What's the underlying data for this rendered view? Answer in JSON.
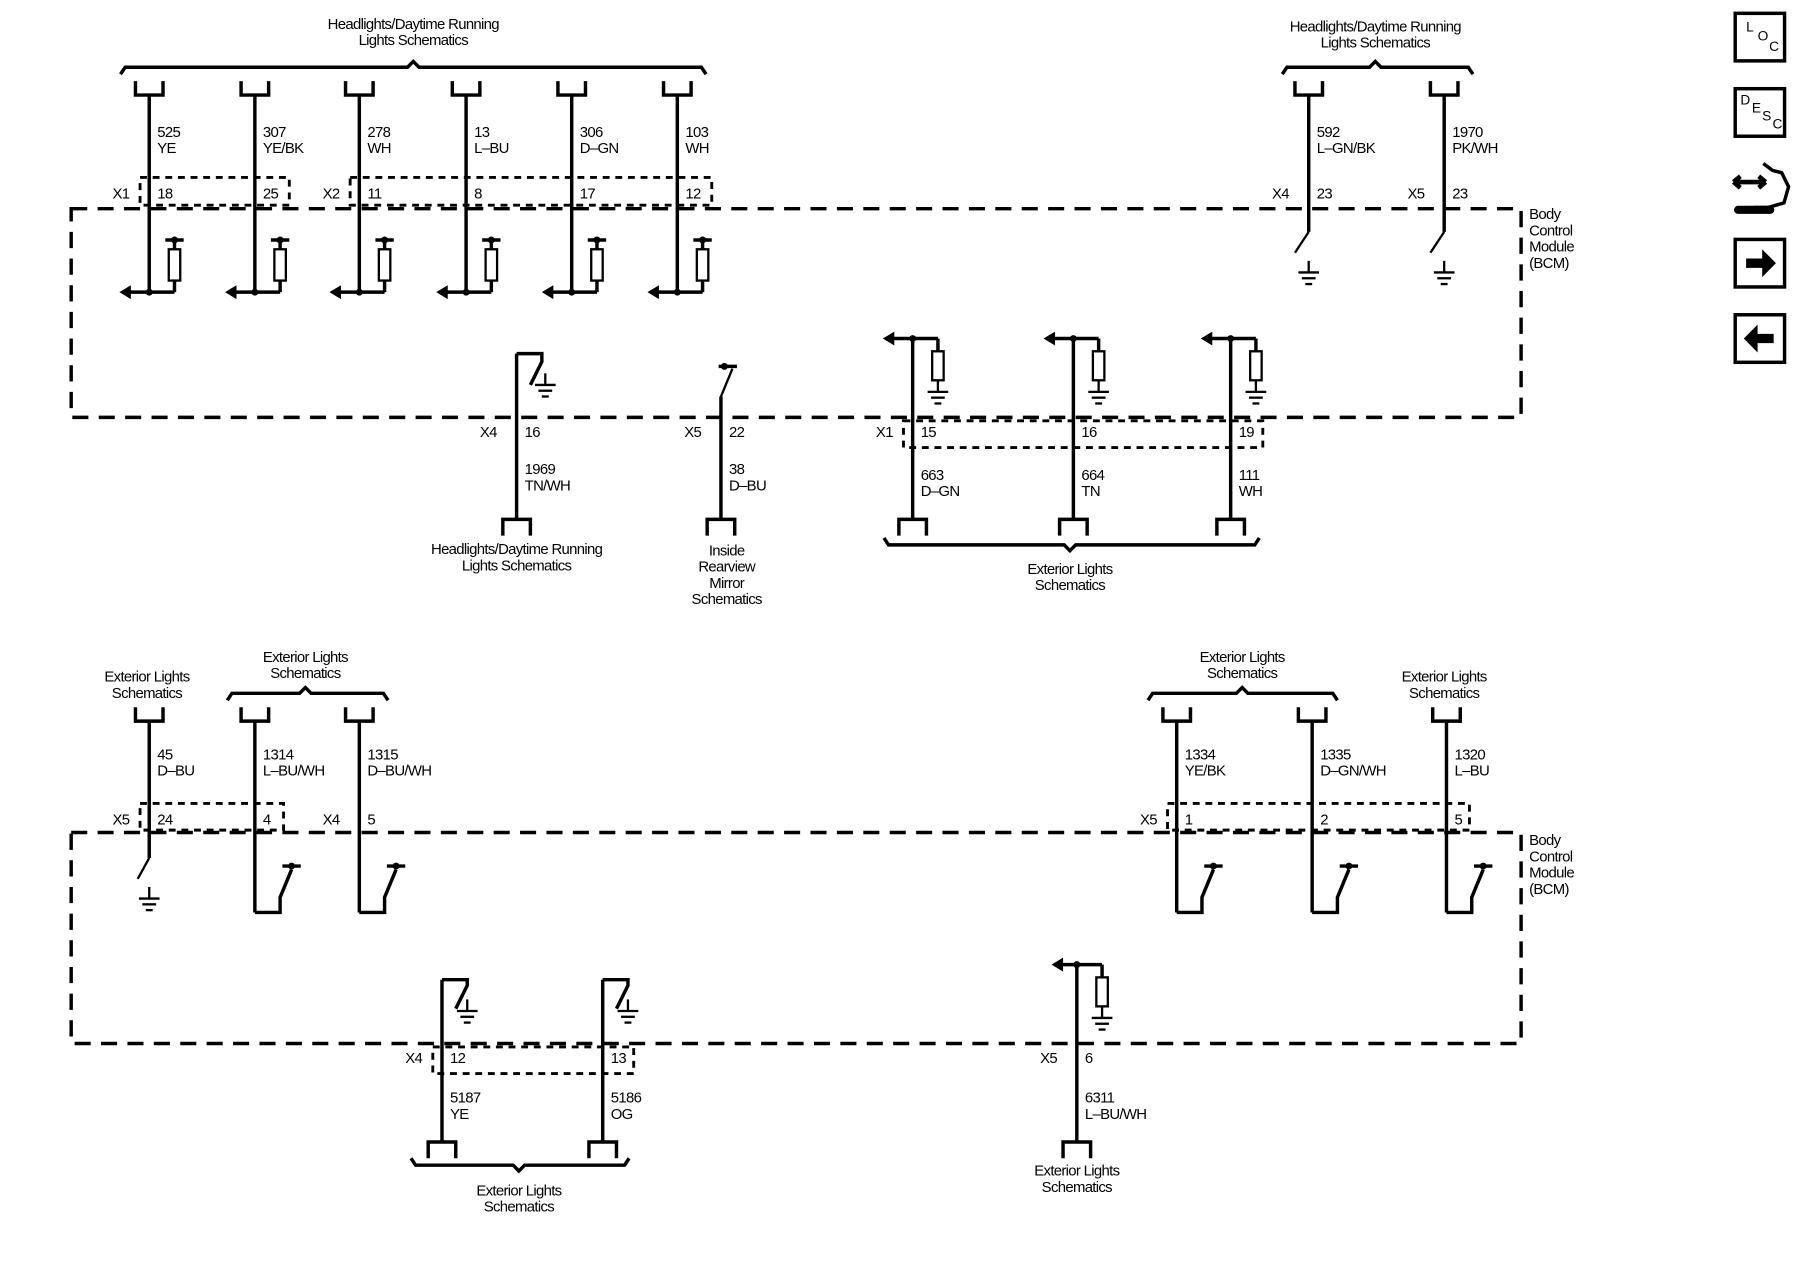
{
  "colors": {
    "line": "#000000",
    "background": "#ffffff"
  },
  "top_module": {
    "name": "Body\nControl\nModule\n(BCM)",
    "wires": [
      {
        "circuit": "525",
        "color": "YE",
        "connector": "X1",
        "pin": "18"
      },
      {
        "circuit": "307",
        "color": "YE/BK",
        "connector": "",
        "pin": "25"
      },
      {
        "circuit": "278",
        "color": "WH",
        "connector": "X2",
        "pin": "11"
      },
      {
        "circuit": "13",
        "color": "L–BU",
        "connector": "",
        "pin": "8"
      },
      {
        "circuit": "306",
        "color": "D–GN",
        "connector": "",
        "pin": "17"
      },
      {
        "circuit": "103",
        "color": "WH",
        "connector": "",
        "pin": "12"
      },
      {
        "circuit": "592",
        "color": "L–GN/BK",
        "connector": "X4",
        "pin": "23"
      },
      {
        "circuit": "1970",
        "color": "PK/WH",
        "connector": "X5",
        "pin": "23"
      },
      {
        "circuit": "1969",
        "color": "TN/WH",
        "connector": "X4",
        "pin": "16"
      },
      {
        "circuit": "38",
        "color": "D–BU",
        "connector": "X5",
        "pin": "22"
      },
      {
        "circuit": "663",
        "color": "D–GN",
        "connector": "X1",
        "pin": "15"
      },
      {
        "circuit": "664",
        "color": "TN",
        "connector": "",
        "pin": "16"
      },
      {
        "circuit": "111",
        "color": "WH",
        "connector": "",
        "pin": "19"
      }
    ],
    "destinations": [
      "Headlights/Daytime Running\nLights Schematics",
      "Headlights/Daytime Running\nLights Schematics",
      "Headlights/Daytime Running\nLights Schematics",
      "Inside\nRearview\nMirror\nSchematics",
      "Exterior Lights\nSchematics"
    ]
  },
  "bottom_module": {
    "name": "Body\nControl\nModule\n(BCM)",
    "wires": [
      {
        "circuit": "45",
        "color": "D–BU",
        "connector": "X5",
        "pin": "24"
      },
      {
        "circuit": "1314",
        "color": "L–BU/WH",
        "connector": "",
        "pin": "4"
      },
      {
        "circuit": "1315",
        "color": "D–BU/WH",
        "connector": "X4",
        "pin": "5"
      },
      {
        "circuit": "1334",
        "color": "YE/BK",
        "connector": "X5",
        "pin": "1"
      },
      {
        "circuit": "1335",
        "color": "D–GN/WH",
        "connector": "",
        "pin": "2"
      },
      {
        "circuit": "1320",
        "color": "L–BU",
        "connector": "",
        "pin": "5"
      },
      {
        "circuit": "5187",
        "color": "YE",
        "connector": "X4",
        "pin": "12"
      },
      {
        "circuit": "5186",
        "color": "OG",
        "connector": "",
        "pin": "13"
      },
      {
        "circuit": "6311",
        "color": "L–BU/WH",
        "connector": "X5",
        "pin": "6"
      }
    ],
    "destinations": [
      "Exterior Lights\nSchematics",
      "Exterior Lights\nSchematics",
      "Exterior Lights\nSchematics",
      "Exterior Lights\nSchematics",
      "Exterior Lights\nSchematics",
      "Exterior Lights\nSchematics"
    ]
  },
  "side_nav": [
    {
      "label": "LOC",
      "icon": "location-icon"
    },
    {
      "label": "DESC",
      "icon": "description-icon"
    },
    {
      "label": "",
      "icon": "connector-tool-icon"
    },
    {
      "label": "",
      "icon": "next-arrow-icon"
    },
    {
      "label": "",
      "icon": "previous-arrow-icon"
    }
  ]
}
